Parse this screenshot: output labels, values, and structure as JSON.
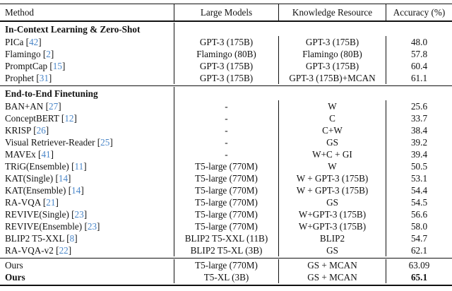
{
  "table": {
    "cite_color": "#4a86c8",
    "columns": [
      "Method",
      "Large Models",
      "Knowledge Resource",
      "Accuracy (%)"
    ],
    "sections": [
      {
        "header": "In-Context Learning & Zero-Shot",
        "rows": [
          {
            "method": "PICa",
            "cite": "42",
            "large_model": "GPT-3 (175B)",
            "knowledge": "GPT-3 (175B)",
            "accuracy": "48.0"
          },
          {
            "method": "Flamingo",
            "cite": "2",
            "large_model": "Flamingo (80B)",
            "knowledge": "Flamingo (80B)",
            "accuracy": "57.8"
          },
          {
            "method": "PromptCap",
            "cite": "15",
            "large_model": "GPT-3 (175B)",
            "knowledge": "GPT-3 (175B)",
            "accuracy": "60.4"
          },
          {
            "method": "Prophet",
            "cite": "31",
            "large_model": "GPT-3 (175B)",
            "knowledge": "GPT-3 (175B)+MCAN",
            "accuracy": "61.1"
          }
        ]
      },
      {
        "header": "End-to-End Finetuning",
        "rows": [
          {
            "method": "BAN+AN",
            "cite": "27",
            "large_model": "-",
            "knowledge": "W",
            "accuracy": "25.6"
          },
          {
            "method": "ConceptBERT",
            "cite": "12",
            "large_model": "-",
            "knowledge": "C",
            "accuracy": "33.7"
          },
          {
            "method": "KRISP",
            "cite": "26",
            "large_model": "-",
            "knowledge": "C+W",
            "accuracy": "38.4"
          },
          {
            "method": "Visual Retriever-Reader",
            "cite": "25",
            "large_model": "-",
            "knowledge": "GS",
            "accuracy": "39.2"
          },
          {
            "method": "MAVEx",
            "cite": "41",
            "large_model": "-",
            "knowledge": "W+C + GI",
            "accuracy": "39.4"
          },
          {
            "method": "TRiG(Ensemble)",
            "cite": "11",
            "large_model": "T5-large (770M)",
            "knowledge": "W",
            "accuracy": "50.5"
          },
          {
            "method": "KAT(Single)",
            "cite": "14",
            "large_model": "T5-large (770M)",
            "knowledge": "W + GPT-3 (175B)",
            "accuracy": "53.1"
          },
          {
            "method": "KAT(Ensemble)",
            "cite": "14",
            "large_model": "T5-large (770M)",
            "knowledge": "W + GPT-3 (175B)",
            "accuracy": "54.4"
          },
          {
            "method": "RA-VQA",
            "cite": "21",
            "large_model": "T5-large (770M)",
            "knowledge": "GS",
            "accuracy": "54.5"
          },
          {
            "method": "REVIVE(Single)",
            "cite": "23",
            "large_model": "T5-large (770M)",
            "knowledge": "W+GPT-3 (175B)",
            "accuracy": "56.6"
          },
          {
            "method": "REVIVE(Ensemble)",
            "cite": "23",
            "large_model": "T5-large (770M)",
            "knowledge": "W+GPT-3 (175B)",
            "accuracy": "58.0"
          },
          {
            "method": "BLIP2 T5-XXL",
            "cite": "8",
            "large_model": "BLIP2 T5-XXL (11B)",
            "knowledge": "BLIP2",
            "accuracy": "54.7"
          },
          {
            "method": "RA-VQA-v2",
            "cite": "22",
            "large_model": "BLIP2 T5-XL (3B)",
            "knowledge": "GS",
            "accuracy": "62.1"
          }
        ]
      },
      {
        "header": null,
        "rows": [
          {
            "method": "Ours",
            "cite": null,
            "large_model": "T5-large (770M)",
            "knowledge": "GS + MCAN",
            "accuracy": "63.09"
          },
          {
            "method": "Ours",
            "cite": null,
            "large_model": "T5-XL (3B)",
            "knowledge": "GS + MCAN",
            "accuracy": "65.1"
          }
        ]
      }
    ]
  }
}
